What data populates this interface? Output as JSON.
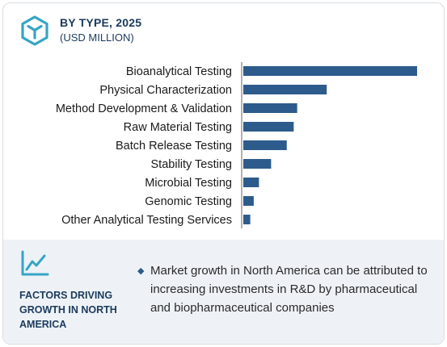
{
  "header": {
    "title": "BY TYPE, 2025",
    "subtitle": "(USD MILLION)",
    "icon": "cube-icon"
  },
  "chart_data": {
    "type": "bar",
    "orientation": "horizontal",
    "categories": [
      "Bioanalytical Testing",
      "Physical Characterization",
      "Method Development & Validation",
      "Raw Material Testing",
      "Batch Release Testing",
      "Stability Testing",
      "Microbial Testing",
      "Genomic Testing",
      "Other Analytical Testing Services"
    ],
    "values": [
      100,
      48,
      31,
      29,
      25,
      16,
      9,
      6,
      4
    ],
    "bar_color": "#2d5b8c",
    "grid": false
  },
  "factors": {
    "icon": "trend-line-icon",
    "title": "FACTORS DRIVING GROWTH IN NORTH AMERICA",
    "bullet_icon": "diamond-bullet-icon",
    "text": "Market growth in North America can be attributed to increasing investments in R&D by pharmaceutical and biopharmaceutical companies"
  }
}
